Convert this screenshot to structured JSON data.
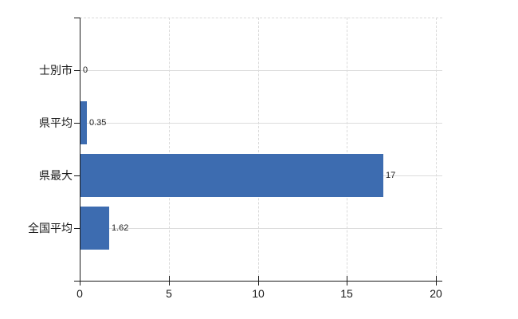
{
  "chart_data": {
    "type": "bar",
    "orientation": "horizontal",
    "title": "",
    "categories": [
      "士別市",
      "県平均",
      "県最大",
      "全国平均"
    ],
    "values": [
      0,
      0.35,
      17,
      1.62
    ],
    "value_labels": [
      "0",
      "0.35",
      "17",
      "1.62"
    ],
    "xlim": [
      0,
      20
    ],
    "x_ticks": [
      0,
      5,
      10,
      15,
      20
    ],
    "x_tick_labels": [
      "0",
      "5",
      "10",
      "15",
      "20"
    ],
    "grid": true,
    "legend": "none",
    "colors": {
      "bar": "#3d6cb0",
      "grid": "#d9d9d9",
      "axis": "#1a1a1a",
      "text": "#1a1a1a"
    }
  }
}
